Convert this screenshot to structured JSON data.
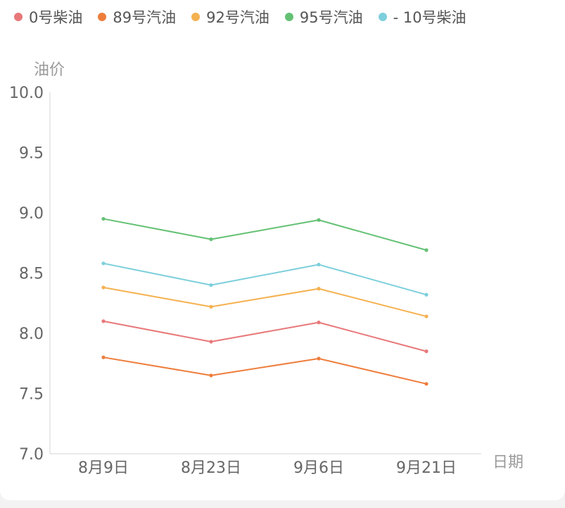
{
  "chart_data": {
    "type": "line",
    "title": "",
    "xlabel": "日期",
    "ylabel": "油价",
    "ylim": [
      7.0,
      10.0
    ],
    "yticks": [
      "7.0",
      "7.5",
      "8.0",
      "8.5",
      "9.0",
      "9.5",
      "10.0"
    ],
    "categories": [
      "8月9日",
      "8月23日",
      "9月6日",
      "9月21日"
    ],
    "legend_position": "top",
    "series": [
      {
        "name": "0号柴油",
        "color": "#e8787a",
        "values": [
          8.1,
          7.93,
          8.09,
          7.85
        ]
      },
      {
        "name": "89号汽油",
        "color": "#ee7d3c",
        "values": [
          7.8,
          7.65,
          7.79,
          7.58
        ]
      },
      {
        "name": "92号汽油",
        "color": "#f5b14f",
        "values": [
          8.38,
          8.22,
          8.37,
          8.14
        ]
      },
      {
        "name": "95号汽油",
        "color": "#64c174",
        "values": [
          8.95,
          8.78,
          8.94,
          8.69
        ]
      },
      {
        "name": "- 10号柴油",
        "color": "#7dcfdc",
        "values": [
          8.58,
          8.4,
          8.57,
          8.32
        ]
      }
    ]
  }
}
